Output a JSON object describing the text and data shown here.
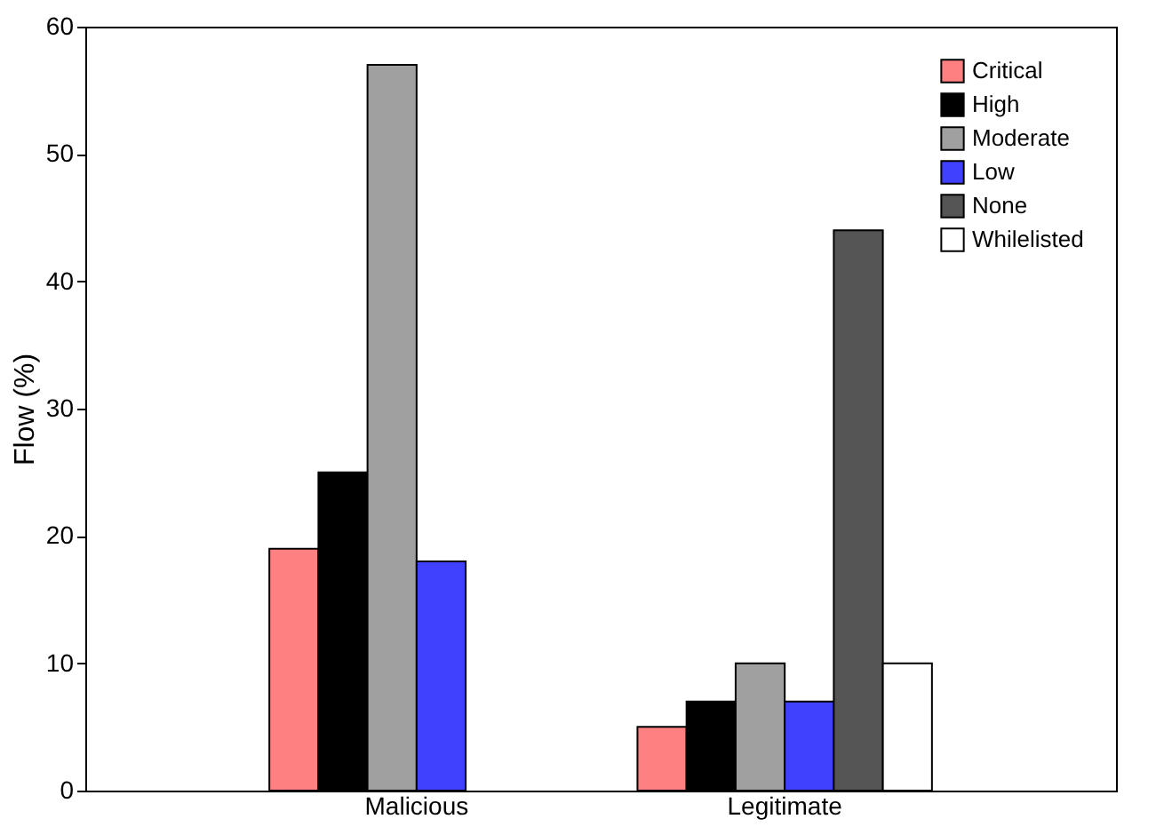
{
  "chart_data": {
    "type": "bar",
    "ylabel": "Flow (%)",
    "categories": [
      "Malicious",
      "Legitimate"
    ],
    "series": [
      {
        "name": "Critical",
        "color": "#ff8080",
        "values": [
          19,
          5
        ]
      },
      {
        "name": "High",
        "color": "#000000",
        "values": [
          25,
          7
        ]
      },
      {
        "name": "Moderate",
        "color": "#a0a0a0",
        "values": [
          57,
          10
        ]
      },
      {
        "name": "Low",
        "color": "#4040ff",
        "values": [
          18,
          7
        ]
      },
      {
        "name": "None",
        "color": "#555555",
        "values": [
          null,
          44
        ]
      },
      {
        "name": "Whilelisted",
        "color": "#ffffff",
        "values": [
          null,
          10
        ]
      }
    ],
    "ylim": [
      0,
      60
    ],
    "yticks": [
      0,
      10,
      20,
      30,
      40,
      50,
      60
    ],
    "grid": false,
    "legend": "top right"
  }
}
